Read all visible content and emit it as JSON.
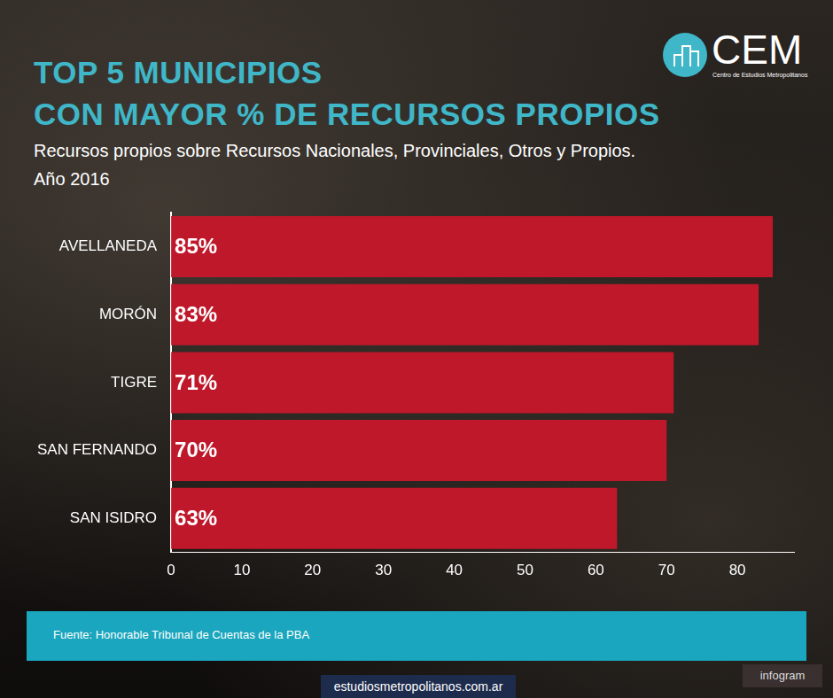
{
  "chart_data": {
    "type": "bar",
    "orientation": "horizontal",
    "title": [
      "TOP 5 MUNICIPIOS",
      "CON MAYOR % DE RECURSOS PROPIOS"
    ],
    "subtitle": [
      "Recursos propios sobre Recursos Nacionales, Provinciales, Otros y Propios.",
      "Año 2016"
    ],
    "categories": [
      "AVELLANEDA",
      "MORÓN",
      "TIGRE",
      "SAN FERNANDO",
      "SAN ISIDRO"
    ],
    "values": [
      85,
      83,
      71,
      70,
      63
    ],
    "value_labels": [
      "85%",
      "83%",
      "71%",
      "70%",
      "63%"
    ],
    "data_labels": true,
    "color": "#c0182b",
    "xlim": [
      0,
      88
    ],
    "xticks": [
      0,
      10,
      20,
      30,
      40,
      50,
      60,
      70,
      80
    ],
    "grid": false
  },
  "logo": {
    "name": "CEM",
    "subtitle": "Centro de Estudios Metropolitanos"
  },
  "source": "Fuente: Honorable Tribunal de Cuentas de la PBA",
  "website": "estudiosmetropolitanos.com.ar",
  "badge": "infogram"
}
